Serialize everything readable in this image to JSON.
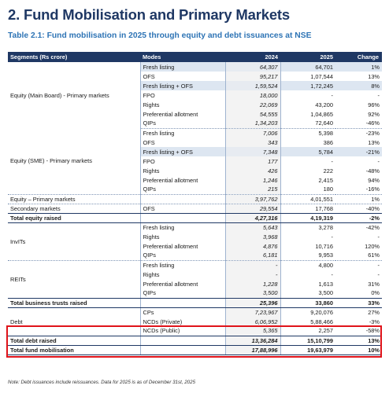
{
  "heading": "2. Fund Mobilisation and Primary Markets",
  "subtitle": "Table 2.1: Fund mobilisation in 2025 through equity and debt issuances at NSE",
  "headers": {
    "segments": "Segments (Rs crore)",
    "modes": "Modes",
    "y2024": "2024",
    "y2025": "2025",
    "change": "Change"
  },
  "rows": [
    {
      "segment": "",
      "mode": "Fresh listing",
      "v2024": "64,307",
      "v2025": "64,701",
      "change": "1%"
    },
    {
      "segment": "",
      "mode": "OFS",
      "v2024": "95,217",
      "v2025": "1,07,544",
      "change": "13%"
    },
    {
      "segment": "",
      "mode": "Fresh listing + OFS",
      "v2024": "1,59,524",
      "v2025": "1,72,245",
      "change": "8%"
    },
    {
      "segment": "Equity (Main Board) - Primary markets",
      "mode": "FPO",
      "v2024": "18,000",
      "v2025": "-",
      "change": "-"
    },
    {
      "segment": "",
      "mode": "Rights",
      "v2024": "22,069",
      "v2025": "43,200",
      "change": "96%"
    },
    {
      "segment": "",
      "mode": "Preferential allotment",
      "v2024": "54,555",
      "v2025": "1,04,865",
      "change": "92%"
    },
    {
      "segment": "",
      "mode": "QIPs",
      "v2024": "1,34,203",
      "v2025": "72,640",
      "change": "-46%"
    },
    {
      "segment": "",
      "mode": "Fresh listing",
      "v2024": "7,006",
      "v2025": "5,398",
      "change": "-23%"
    },
    {
      "segment": "",
      "mode": "OFS",
      "v2024": "343",
      "v2025": "386",
      "change": "13%"
    },
    {
      "segment": "",
      "mode": "Fresh listing + OFS",
      "v2024": "7,348",
      "v2025": "5,784",
      "change": "-21%"
    },
    {
      "segment": "Equity (SME) - Primary markets",
      "mode": "FPO",
      "v2024": "177",
      "v2025": "-",
      "change": "-"
    },
    {
      "segment": "",
      "mode": "Rights",
      "v2024": "426",
      "v2025": "222",
      "change": "-48%"
    },
    {
      "segment": "",
      "mode": "Preferential allotment",
      "v2024": "1,246",
      "v2025": "2,415",
      "change": "94%"
    },
    {
      "segment": "",
      "mode": "QIPs",
      "v2024": "215",
      "v2025": "180",
      "change": "-16%"
    },
    {
      "segment": "Equity – Primary markets",
      "mode": "",
      "v2024": "3,97,762",
      "v2025": "4,01,551",
      "change": "1%"
    },
    {
      "segment": "Secondary markets",
      "mode": "OFS",
      "v2024": "29,554",
      "v2025": "17,768",
      "change": "-40%"
    },
    {
      "segment": "Total equity raised",
      "mode": "",
      "v2024": "4,27,316",
      "v2025": "4,19,319",
      "change": "-2%"
    },
    {
      "segment": "",
      "mode": "Fresh listing",
      "v2024": "5,643",
      "v2025": "3,278",
      "change": "-42%"
    },
    {
      "segment": "InvITs",
      "mode": "Rights",
      "v2024": "3,968",
      "v2025": "-",
      "change": "-"
    },
    {
      "segment": "",
      "mode": "Preferential allotment",
      "v2024": "4,876",
      "v2025": "10,716",
      "change": "120%"
    },
    {
      "segment": "",
      "mode": "QIPs",
      "v2024": "6,181",
      "v2025": "9,953",
      "change": "61%"
    },
    {
      "segment": "",
      "mode": "Fresh listing",
      "v2024": "-",
      "v2025": "4,800",
      "change": "-"
    },
    {
      "segment": "REITs",
      "mode": "Rights",
      "v2024": "-",
      "v2025": "-",
      "change": "-"
    },
    {
      "segment": "",
      "mode": "Preferential allotment",
      "v2024": "1,228",
      "v2025": "1,613",
      "change": "31%"
    },
    {
      "segment": "",
      "mode": "QIPs",
      "v2024": "3,500",
      "v2025": "3,500",
      "change": "0%"
    },
    {
      "segment": "Total business trusts raised",
      "mode": "",
      "v2024": "25,396",
      "v2025": "33,860",
      "change": "33%"
    },
    {
      "segment": "",
      "mode": "CPs",
      "v2024": "7,23,967",
      "v2025": "9,20,076",
      "change": "27%"
    },
    {
      "segment": "Debt",
      "mode": "NCDs (Private)",
      "v2024": "6,06,952",
      "v2025": "5,88,466",
      "change": "-3%"
    },
    {
      "segment": "",
      "mode": "NCDs (Public)",
      "v2024": "5,365",
      "v2025": "2,257",
      "change": "-58%"
    },
    {
      "segment": "Total debt raised",
      "mode": "",
      "v2024": "13,36,284",
      "v2025": "15,10,799",
      "change": "13%"
    },
    {
      "segment": "Total fund mobilisation",
      "mode": "",
      "v2024": "17,88,996",
      "v2025": "19,63,979",
      "change": "10%"
    }
  ],
  "note": "Note: Debt issuances include reissuances. Data for 2025 is as of December 31st, 2025",
  "colors": {
    "header_bg": "#1f3864",
    "heading": "#1f3864",
    "subtitle": "#2e74b5",
    "shade": "#dde6f1",
    "highlight_border": "#e0131a"
  }
}
